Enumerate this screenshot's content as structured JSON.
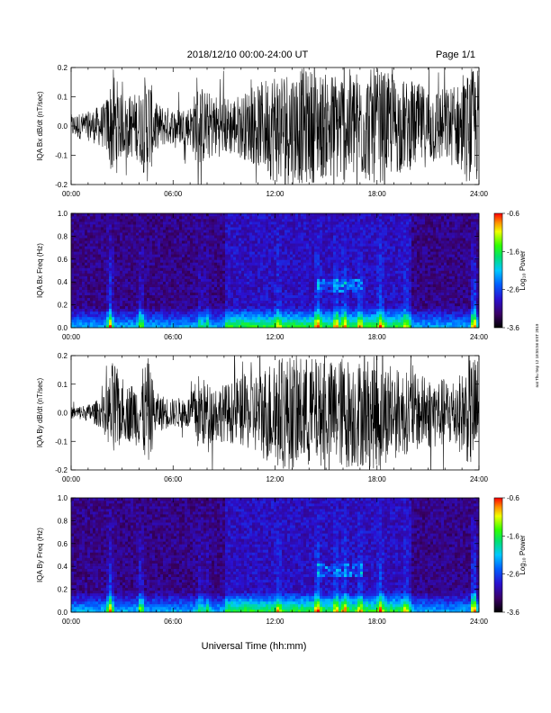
{
  "header": {
    "date_range": "2018/12/10   00:00-24:00 UT",
    "page": "Page 1/1"
  },
  "footer": {
    "xlabel": "Universal Time (hh:mm)"
  },
  "side_stamp": "nat Thu Sep 12 18:55:56 EST 2019",
  "chart_data": [
    {
      "type": "line",
      "ylabel": "IQA Bx dB/dt (nT/sec)",
      "ylim": [
        -0.2,
        0.2
      ],
      "yticks": [
        "0.2",
        "0.1",
        "0.0",
        "-0.1",
        "-0.2"
      ],
      "xlim": [
        0,
        24
      ],
      "xticks": [
        "00:00",
        "06:00",
        "12:00",
        "18:00",
        "24:00"
      ],
      "amplitude_envelope": {
        "hours": [
          0,
          1,
          2,
          2.5,
          3,
          4,
          4.5,
          5,
          6,
          7,
          7.5,
          8,
          9,
          10,
          11,
          12,
          13,
          14,
          15,
          16,
          17,
          18,
          19,
          20,
          21,
          22,
          23,
          23.5,
          24
        ],
        "amplitude": [
          0.04,
          0.05,
          0.08,
          0.2,
          0.1,
          0.12,
          0.2,
          0.08,
          0.06,
          0.07,
          0.15,
          0.12,
          0.1,
          0.11,
          0.14,
          0.2,
          0.2,
          0.2,
          0.18,
          0.2,
          0.19,
          0.2,
          0.17,
          0.15,
          0.14,
          0.13,
          0.15,
          0.2,
          0.2
        ]
      }
    },
    {
      "type": "heatmap",
      "ylabel": "IQA Bx Freq (Hz)",
      "ylim": [
        0.0,
        1.0
      ],
      "yticks": [
        "1.0",
        "0.8",
        "0.6",
        "0.4",
        "0.2",
        "0.0"
      ],
      "xlim": [
        0,
        24
      ],
      "xticks": [
        "00:00",
        "06:00",
        "12:00",
        "18:00",
        "24:00"
      ],
      "colorbar": {
        "label": "Log₁₀ Power",
        "range": [
          -3.6,
          -0.6
        ],
        "ticks": [
          "-0.6",
          "-1.6",
          "-2.6",
          "-3.6"
        ]
      }
    },
    {
      "type": "line",
      "ylabel": "IQA By dB/dt (nT/sec)",
      "ylim": [
        -0.2,
        0.2
      ],
      "yticks": [
        "0.2",
        "0.1",
        "0.0",
        "-0.1",
        "-0.2"
      ],
      "xlim": [
        0,
        24
      ],
      "xticks": [
        "00:00",
        "06:00",
        "12:00",
        "18:00",
        "24:00"
      ],
      "amplitude_envelope": {
        "hours": [
          0,
          1,
          2,
          2.5,
          3,
          4,
          4.5,
          5,
          6,
          7,
          7.5,
          8,
          9,
          10,
          11,
          12,
          13,
          14,
          15,
          16,
          17,
          18,
          19,
          20,
          21,
          22,
          23,
          23.5,
          24
        ],
        "amplitude": [
          0.02,
          0.03,
          0.06,
          0.2,
          0.09,
          0.12,
          0.2,
          0.07,
          0.05,
          0.06,
          0.14,
          0.11,
          0.1,
          0.12,
          0.15,
          0.2,
          0.2,
          0.2,
          0.18,
          0.2,
          0.19,
          0.2,
          0.16,
          0.14,
          0.13,
          0.12,
          0.14,
          0.2,
          0.2
        ]
      }
    },
    {
      "type": "heatmap",
      "ylabel": "IQA By Freq (Hz)",
      "ylim": [
        0.0,
        1.0
      ],
      "yticks": [
        "1.0",
        "0.8",
        "0.6",
        "0.4",
        "0.2",
        "0.0"
      ],
      "xlim": [
        0,
        24
      ],
      "xticks": [
        "00:00",
        "06:00",
        "12:00",
        "18:00",
        "24:00"
      ],
      "colorbar": {
        "label": "Log₁₀ Power",
        "range": [
          -3.6,
          -0.6
        ],
        "ticks": [
          "-0.6",
          "-1.6",
          "-2.6",
          "-3.6"
        ]
      }
    }
  ]
}
